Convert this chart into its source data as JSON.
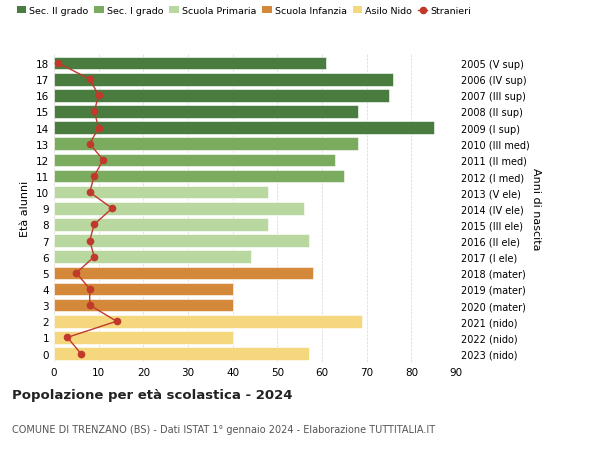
{
  "ages": [
    18,
    17,
    16,
    15,
    14,
    13,
    12,
    11,
    10,
    9,
    8,
    7,
    6,
    5,
    4,
    3,
    2,
    1,
    0
  ],
  "right_labels": [
    "2005 (V sup)",
    "2006 (IV sup)",
    "2007 (III sup)",
    "2008 (II sup)",
    "2009 (I sup)",
    "2010 (III med)",
    "2011 (II med)",
    "2012 (I med)",
    "2013 (V ele)",
    "2014 (IV ele)",
    "2015 (III ele)",
    "2016 (II ele)",
    "2017 (I ele)",
    "2018 (mater)",
    "2019 (mater)",
    "2020 (mater)",
    "2021 (nido)",
    "2022 (nido)",
    "2023 (nido)"
  ],
  "bar_values": [
    61,
    76,
    75,
    68,
    85,
    68,
    63,
    65,
    48,
    56,
    48,
    57,
    44,
    58,
    40,
    40,
    69,
    40,
    57
  ],
  "bar_colors": [
    "#4a7c3f",
    "#4a7c3f",
    "#4a7c3f",
    "#4a7c3f",
    "#4a7c3f",
    "#7aab5e",
    "#7aab5e",
    "#7aab5e",
    "#b8d8a0",
    "#b8d8a0",
    "#b8d8a0",
    "#b8d8a0",
    "#b8d8a0",
    "#d4883a",
    "#d4883a",
    "#d4883a",
    "#f5d87e",
    "#f5d87e",
    "#f5d87e"
  ],
  "stranieri_values": [
    1,
    8,
    10,
    9,
    10,
    8,
    11,
    9,
    8,
    13,
    9,
    8,
    9,
    5,
    8,
    8,
    14,
    3,
    6
  ],
  "legend_labels": [
    "Sec. II grado",
    "Sec. I grado",
    "Scuola Primaria",
    "Scuola Infanzia",
    "Asilo Nido",
    "Stranieri"
  ],
  "legend_colors": [
    "#4a7c3f",
    "#7aab5e",
    "#b8d8a0",
    "#d4883a",
    "#f5d87e",
    "#c0392b"
  ],
  "title": "Popolazione per età scolastica - 2024",
  "subtitle": "COMUNE DI TRENZANO (BS) - Dati ISTAT 1° gennaio 2024 - Elaborazione TUTTITALIA.IT",
  "ylabel_left": "Età alunni",
  "ylabel_right": "Anni di nascita",
  "xlim": [
    0,
    90
  ],
  "xticks": [
    0,
    10,
    20,
    30,
    40,
    50,
    60,
    70,
    80,
    90
  ],
  "background_color": "#ffffff",
  "bar_height": 0.78,
  "stranieri_color": "#c0392b",
  "stranieri_markersize": 4.5
}
